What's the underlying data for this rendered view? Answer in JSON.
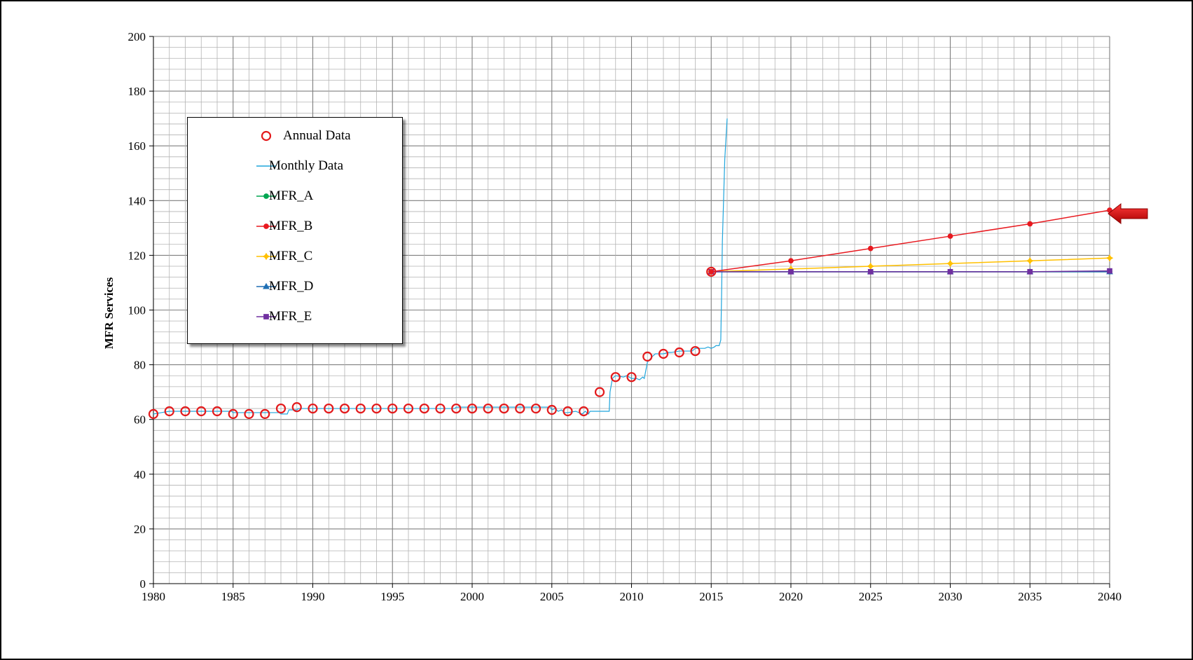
{
  "chart_data": {
    "type": "line",
    "title": "",
    "xlabel": "",
    "ylabel": "MFR Services",
    "xlim": [
      1980,
      2040
    ],
    "ylim": [
      0,
      200
    ],
    "x_ticks": [
      1980,
      1985,
      1990,
      1995,
      2000,
      2005,
      2010,
      2015,
      2020,
      2025,
      2030,
      2035,
      2040
    ],
    "y_ticks": [
      0,
      20,
      40,
      60,
      80,
      100,
      120,
      140,
      160,
      180,
      200
    ],
    "grid": true,
    "legend_position": "upper-left",
    "series": [
      {
        "name": "Annual Data",
        "style": "markers",
        "marker": "open-circle",
        "color": "#e31a1c",
        "x": [
          1980,
          1981,
          1982,
          1983,
          1984,
          1985,
          1986,
          1987,
          1988,
          1989,
          1990,
          1991,
          1992,
          1993,
          1994,
          1995,
          1996,
          1997,
          1998,
          1999,
          2000,
          2001,
          2002,
          2003,
          2004,
          2005,
          2006,
          2007,
          2008,
          2009,
          2010,
          2011,
          2012,
          2013,
          2014,
          2015
        ],
        "y": [
          62,
          63,
          63,
          63,
          63,
          62,
          62,
          62,
          64,
          64.5,
          64,
          64,
          64,
          64,
          64,
          64,
          64,
          64,
          64,
          64,
          64,
          64,
          64,
          64,
          64,
          63.5,
          63,
          63,
          70,
          75.5,
          75.5,
          83,
          84,
          84.5,
          85,
          114
        ]
      },
      {
        "name": "Monthly Data",
        "style": "line",
        "color": "#1fa5dc",
        "x": [
          1980,
          1980.5,
          1981,
          1984.9,
          1985,
          1987.9,
          1988,
          1988.4,
          1988.5,
          1989,
          1989.1,
          1998.9,
          1999,
          2004.9,
          2005,
          2005.2,
          2005.4,
          2005.6,
          2005.8,
          2006,
          2006.5,
          2006.9,
          2007,
          2007.1,
          2007.3,
          2007.4,
          2007.6,
          2008.6,
          2008.65,
          2008.8,
          2009,
          2009.5,
          2009.7,
          2010,
          2010.3,
          2010.5,
          2010.7,
          2010.8,
          2010.9,
          2011,
          2011.3,
          2011.5,
          2012,
          2012.3,
          2012.5,
          2013,
          2013.8,
          2014,
          2014.6,
          2014.8,
          2015,
          2015.2,
          2015.3,
          2015.5,
          2015.6,
          2015.65,
          2015.7,
          2015.8,
          2015.85,
          2015.9,
          2016
        ],
        "y": [
          62,
          62.5,
          63,
          63,
          62.5,
          62.5,
          62,
          62,
          63.5,
          63.5,
          64,
          64,
          64.5,
          64.5,
          63.5,
          64,
          63,
          63.5,
          62.5,
          62.5,
          63,
          62,
          62.5,
          63,
          62,
          63,
          63,
          63,
          70,
          75,
          76,
          75.5,
          76,
          75,
          75,
          74.5,
          75.5,
          75,
          78,
          81,
          83,
          84,
          84,
          84.5,
          84.5,
          85,
          85,
          86,
          86,
          86.5,
          86,
          86.5,
          87,
          87,
          89,
          105,
          125,
          145,
          155,
          160,
          170
        ]
      },
      {
        "name": "MFR_A",
        "style": "line-markers",
        "marker": "circle",
        "color": "#00a651",
        "x": [
          2015,
          2020,
          2025,
          2030,
          2035,
          2040
        ],
        "y": [
          114,
          114,
          114,
          114,
          114,
          114
        ]
      },
      {
        "name": "MFR_B",
        "style": "line-markers",
        "marker": "circle",
        "color": "#e8191f",
        "x": [
          2015,
          2020,
          2025,
          2030,
          2035,
          2040
        ],
        "y": [
          114,
          118,
          122.5,
          127,
          131.5,
          136.5
        ]
      },
      {
        "name": "MFR_C",
        "style": "line-markers",
        "marker": "star",
        "color": "#ffc000",
        "x": [
          2015,
          2020,
          2025,
          2030,
          2035,
          2040
        ],
        "y": [
          114,
          115,
          116,
          117,
          118,
          119
        ]
      },
      {
        "name": "MFR_D",
        "style": "line-markers",
        "marker": "triangle",
        "color": "#1f6fb4",
        "x": [
          2015,
          2020,
          2025,
          2030,
          2035,
          2040
        ],
        "y": [
          114,
          114,
          114,
          114,
          114,
          114
        ]
      },
      {
        "name": "MFR_E",
        "style": "line-markers",
        "marker": "square",
        "color": "#7030a0",
        "x": [
          2015,
          2020,
          2025,
          2030,
          2035,
          2040
        ],
        "y": [
          114,
          114,
          114,
          114,
          114,
          114.3
        ]
      }
    ],
    "annotations": [
      {
        "type": "arrow",
        "points_to_series": "MFR_B",
        "x": 2040,
        "y": 136.5,
        "color": "#d00000"
      }
    ]
  }
}
